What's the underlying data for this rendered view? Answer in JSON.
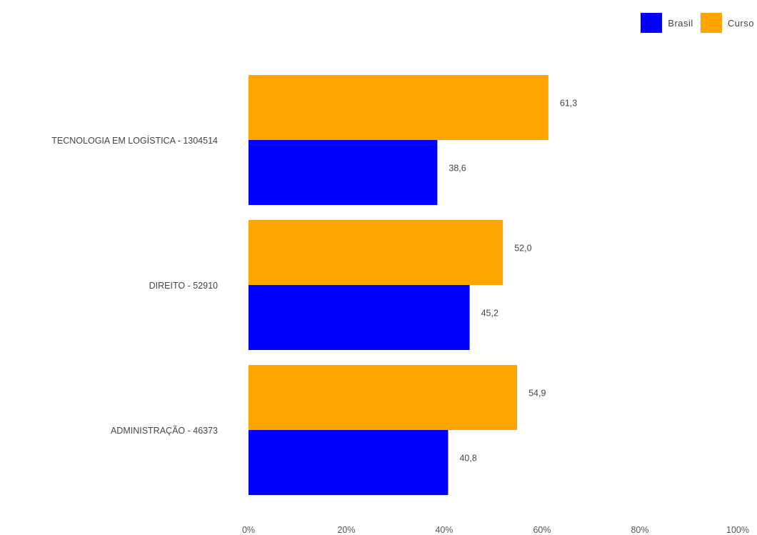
{
  "chart_data": {
    "type": "bar",
    "orientation": "horizontal",
    "categories": [
      "TECNOLOGIA EM LOGÍSTICA - 1304514",
      "DIREITO - 52910",
      "ADMINISTRAÇÃO - 46373"
    ],
    "series": [
      {
        "name": "Curso",
        "color": "#FFA500",
        "values": [
          61.3,
          52.0,
          54.9
        ],
        "labels": [
          "61,3",
          "52,0",
          "54,9"
        ]
      },
      {
        "name": "Brasil",
        "color": "#0000FF",
        "values": [
          38.6,
          45.2,
          40.8
        ],
        "labels": [
          "38,6",
          "45,2",
          "40,8"
        ]
      }
    ],
    "xlim": [
      0,
      100
    ],
    "xticks": [
      "0%",
      "20%",
      "40%",
      "60%",
      "80%",
      "100%"
    ],
    "legend_position": "top-right",
    "grid": false
  },
  "legend": [
    {
      "name": "Brasil",
      "color": "#0000FF"
    },
    {
      "name": "Curso",
      "color": "#FFA500"
    }
  ]
}
